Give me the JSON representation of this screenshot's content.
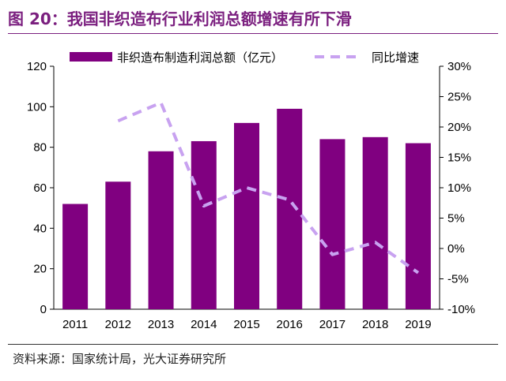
{
  "title": "图 20：我国非织造布行业利润总额增速有所下滑",
  "source": "资料来源：国家统计局，光大证券研究所",
  "colors": {
    "bar": "#800080",
    "line": "#c8a2f0",
    "title": "#7b1f7f"
  },
  "chart_data": {
    "type": "bar",
    "categories": [
      "2011",
      "2012",
      "2013",
      "2014",
      "2015",
      "2016",
      "2017",
      "2018",
      "2019"
    ],
    "series": [
      {
        "name": "非织造布制造利润总额（亿元）",
        "type": "bar",
        "axis": "left",
        "values": [
          52,
          63,
          78,
          83,
          92,
          99,
          84,
          85,
          82
        ]
      },
      {
        "name": "同比增速",
        "type": "line",
        "style": "dashed",
        "axis": "right",
        "values": [
          null,
          21,
          24,
          7,
          10,
          8,
          -1,
          1,
          -4
        ]
      }
    ],
    "yleft": {
      "lim": [
        0,
        120
      ],
      "ticks": [
        0,
        20,
        40,
        60,
        80,
        100,
        120
      ],
      "tick_labels": [
        "0",
        "20",
        "40",
        "60",
        "80",
        "100",
        "120"
      ]
    },
    "yright": {
      "lim": [
        -10,
        30
      ],
      "ticks": [
        -10,
        -5,
        0,
        5,
        10,
        15,
        20,
        25,
        30
      ],
      "tick_labels": [
        "-10%",
        "-5%",
        "0%",
        "5%",
        "10%",
        "15%",
        "20%",
        "25%",
        "30%"
      ]
    },
    "legend": "top",
    "grid": false
  }
}
